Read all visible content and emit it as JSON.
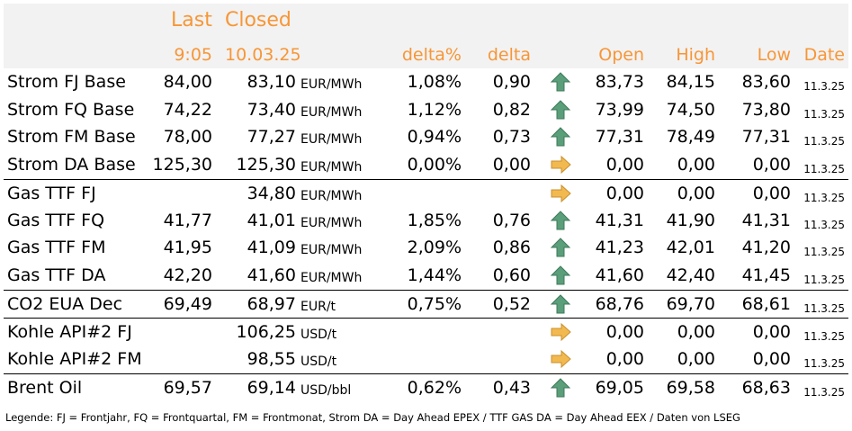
{
  "header": {
    "last_label": "Last",
    "closed_label": "Closed",
    "last_time": "9:05",
    "closed_date": "10.03.25",
    "delta_pct_label": "delta%",
    "delta_label": "delta",
    "open_label": "Open",
    "high_label": "High",
    "low_label": "Low",
    "date_label": "Date"
  },
  "colors": {
    "header_text": "#f79636",
    "header_bg": "#f2f2f2",
    "arrow_up": "#5a9e7a",
    "arrow_right": "#f2b950"
  },
  "rows": [
    {
      "name": "Strom FJ Base",
      "last": "84,00",
      "closed": "83,10",
      "unit": "EUR/MWh",
      "delta_pct": "1,08%",
      "delta": "0,90",
      "trend": "up",
      "open": "83,73",
      "high": "84,15",
      "low": "83,60",
      "date": "11.3.25"
    },
    {
      "name": "Strom FQ Base",
      "last": "74,22",
      "closed": "73,40",
      "unit": "EUR/MWh",
      "delta_pct": "1,12%",
      "delta": "0,82",
      "trend": "up",
      "open": "73,99",
      "high": "74,50",
      "low": "73,80",
      "date": "11.3.25"
    },
    {
      "name": "Strom FM Base",
      "last": "78,00",
      "closed": "77,27",
      "unit": "EUR/MWh",
      "delta_pct": "0,94%",
      "delta": "0,73",
      "trend": "up",
      "open": "77,31",
      "high": "78,49",
      "low": "77,31",
      "date": "11.3.25"
    },
    {
      "name": "Strom DA Base",
      "last": "125,30",
      "closed": "125,30",
      "unit": "EUR/MWh",
      "delta_pct": "0,00%",
      "delta": "0,00",
      "trend": "right",
      "open": "0,00",
      "high": "0,00",
      "low": "0,00",
      "date": "11.3.25"
    },
    {
      "name": "Gas TTF FJ",
      "last": "",
      "closed": "34,80",
      "unit": "EUR/MWh",
      "delta_pct": "",
      "delta": "",
      "trend": "right",
      "open": "0,00",
      "high": "0,00",
      "low": "0,00",
      "date": "11.3.25"
    },
    {
      "name": "Gas TTF FQ",
      "last": "41,77",
      "closed": "41,01",
      "unit": "EUR/MWh",
      "delta_pct": "1,85%",
      "delta": "0,76",
      "trend": "up",
      "open": "41,31",
      "high": "41,90",
      "low": "41,31",
      "date": "11.3.25"
    },
    {
      "name": "Gas TTF FM",
      "last": "41,95",
      "closed": "41,09",
      "unit": "EUR/MWh",
      "delta_pct": "2,09%",
      "delta": "0,86",
      "trend": "up",
      "open": "41,23",
      "high": "42,01",
      "low": "41,20",
      "date": "11.3.25"
    },
    {
      "name": "Gas TTF DA",
      "last": "42,20",
      "closed": "41,60",
      "unit": "EUR/MWh",
      "delta_pct": "1,44%",
      "delta": "0,60",
      "trend": "up",
      "open": "41,60",
      "high": "42,40",
      "low": "41,45",
      "date": "11.3.25"
    },
    {
      "name": "CO2 EUA Dec",
      "last": "69,49",
      "closed": "68,97",
      "unit": "EUR/t",
      "delta_pct": "0,75%",
      "delta": "0,52",
      "trend": "up",
      "open": "68,76",
      "high": "69,70",
      "low": "68,61",
      "date": "11.3.25"
    },
    {
      "name": "Kohle API#2 FJ",
      "last": "",
      "closed": "106,25",
      "unit": "USD/t",
      "delta_pct": "",
      "delta": "",
      "trend": "right",
      "open": "0,00",
      "high": "0,00",
      "low": "0,00",
      "date": "11.3.25"
    },
    {
      "name": "Kohle API#2 FM",
      "last": "",
      "closed": "98,55",
      "unit": "USD/t",
      "delta_pct": "",
      "delta": "",
      "trend": "right",
      "open": "0,00",
      "high": "0,00",
      "low": "0,00",
      "date": "11.3.25"
    },
    {
      "name": "Brent Oil",
      "last": "69,57",
      "closed": "69,14",
      "unit": "USD/bbl",
      "delta_pct": "0,62%",
      "delta": "0,43",
      "trend": "up",
      "open": "69,05",
      "high": "69,58",
      "low": "68,63",
      "date": "11.3.25"
    }
  ],
  "legend": "Legende: FJ = Frontjahr, FQ = Frontquartal, FM = Frontmonat, Strom DA = Day Ahead EPEX / TTF GAS DA = Day Ahead EEX / Daten von LSEG"
}
